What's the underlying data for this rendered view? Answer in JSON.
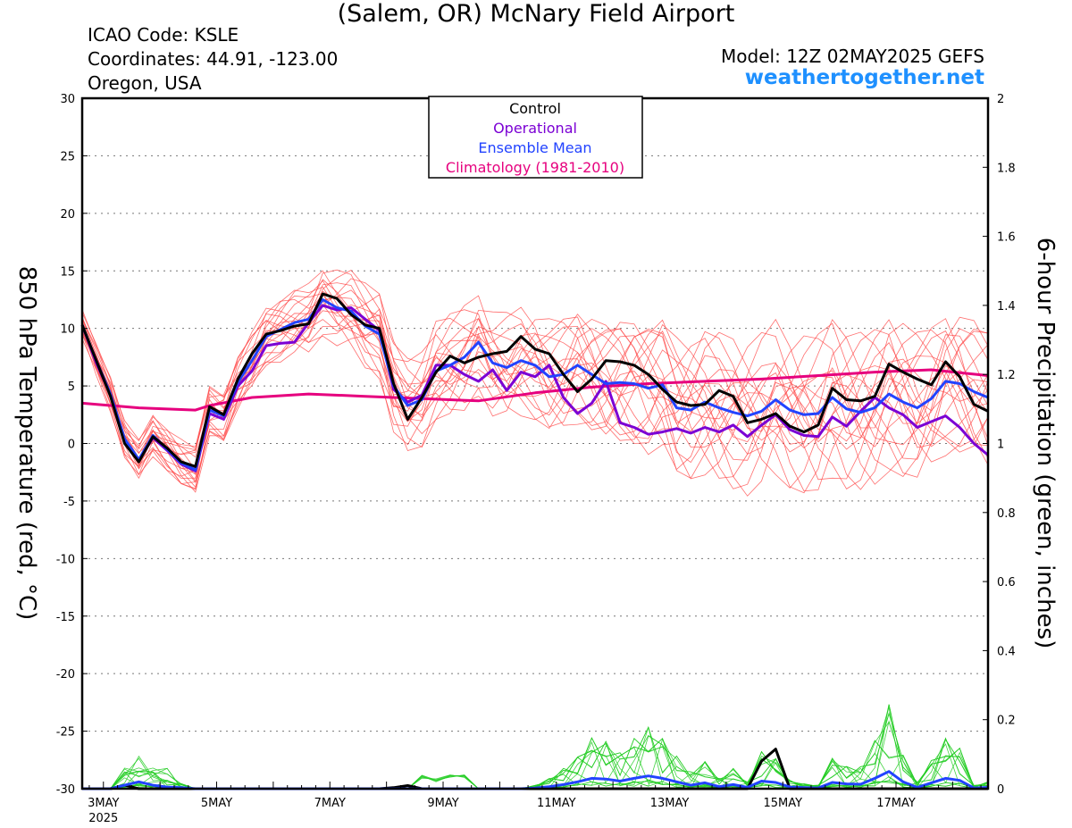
{
  "header": {
    "title": "(Salem, OR) McNary Field Airport",
    "icao": "ICAO Code: KSLE",
    "coords": "Coordinates: 44.91, -123.00",
    "region": "Oregon, USA",
    "model": "Model: 12Z 02MAY2025 GEFS",
    "site": "weathertogether.net"
  },
  "colors": {
    "control": "#000000",
    "operational": "#7b00d4",
    "mean": "#2243ff",
    "climo": "#e6007e",
    "members": "#ff4a4a",
    "precip": "#22cc22"
  },
  "chart_data": {
    "type": "line",
    "ylabel": "850 hPa Temperature (red, °C)",
    "y2label": "6-hour Precipitation (green, inches)",
    "ylim": [
      -30,
      30
    ],
    "y2lim": [
      0,
      2
    ],
    "yticks": [
      -30,
      -25,
      -20,
      -15,
      -10,
      -5,
      0,
      5,
      10,
      15,
      20,
      25,
      30
    ],
    "y2ticks": [
      0,
      0.2,
      0.4,
      0.6,
      0.8,
      1,
      1.2,
      1.4,
      1.6,
      1.8,
      2
    ],
    "x_start_hours": -9,
    "x_end_hours": 375,
    "xticks": [
      {
        "hour": 0,
        "label": "3MAY",
        "sub": "2025"
      },
      {
        "hour": 48,
        "label": "5MAY",
        "sub": ""
      },
      {
        "hour": 96,
        "label": "7MAY",
        "sub": ""
      },
      {
        "hour": 144,
        "label": "9MAY",
        "sub": ""
      },
      {
        "hour": 192,
        "label": "11MAY",
        "sub": ""
      },
      {
        "hour": 240,
        "label": "13MAY",
        "sub": ""
      },
      {
        "hour": 288,
        "label": "15MAY",
        "sub": ""
      },
      {
        "hour": 336,
        "label": "17MAY",
        "sub": ""
      }
    ],
    "legend": [
      "Control",
      "Operational",
      "Ensemble Mean",
      "Climatology (1981-2010)"
    ],
    "grid": "dotted horizontal",
    "series": [
      {
        "name": "Control",
        "color": "#000000",
        "hours": [
          -9,
          -3,
          3,
          9,
          15,
          21,
          27,
          33,
          39,
          45,
          51,
          57,
          63,
          69,
          75,
          81,
          87,
          93,
          99,
          105,
          111,
          117,
          123,
          129,
          135,
          141,
          147,
          153,
          159,
          165,
          171,
          177,
          183,
          189,
          195,
          201,
          207,
          213,
          219,
          225,
          231,
          237,
          243,
          249,
          255,
          261,
          267,
          273,
          279,
          285,
          291,
          297,
          303,
          309,
          315,
          321,
          327,
          333,
          339,
          345,
          351,
          357,
          363,
          369,
          375
        ],
        "values": [
          10.3,
          7.2,
          4.1,
          0.0,
          -1.6,
          0.6,
          -0.4,
          -1.6,
          -2.0,
          3.2,
          2.5,
          5.6,
          7.8,
          9.5,
          9.8,
          10.2,
          10.4,
          13.0,
          12.6,
          11.2,
          10.3,
          10.0,
          5.2,
          2.1,
          4.0,
          6.2,
          7.6,
          7.0,
          7.5,
          7.8,
          8.0,
          9.3,
          8.2,
          7.8,
          6.0,
          4.5,
          5.6,
          7.2,
          7.1,
          6.8,
          6.0,
          4.7,
          3.6,
          3.3,
          3.4,
          4.6,
          4.1,
          1.8,
          2.1,
          2.6,
          1.5,
          1.0,
          1.6,
          4.8,
          3.8,
          3.7,
          4.1,
          6.9,
          6.2,
          5.6,
          5.1,
          7.1,
          5.8,
          3.4,
          2.8
        ]
      },
      {
        "name": "Operational",
        "color": "#7b00d4",
        "hours": [
          -9,
          -3,
          3,
          9,
          15,
          21,
          27,
          33,
          39,
          45,
          51,
          57,
          63,
          69,
          75,
          81,
          87,
          93,
          99,
          105,
          111,
          117,
          123,
          129,
          135,
          141,
          147,
          153,
          159,
          165,
          171,
          177,
          183,
          189,
          195,
          201,
          207,
          213,
          219,
          225,
          231,
          237,
          243,
          249,
          255,
          261,
          267,
          273,
          279,
          285,
          291,
          297,
          303,
          309,
          315,
          321,
          327,
          333,
          339,
          345,
          351,
          357,
          363,
          369,
          375
        ],
        "values": [
          10.3,
          7.0,
          4.2,
          0.2,
          -1.5,
          0.5,
          -0.6,
          -1.8,
          -2.4,
          2.6,
          2.1,
          5.0,
          6.3,
          8.5,
          8.7,
          8.8,
          10.5,
          12.0,
          11.6,
          11.8,
          10.8,
          9.8,
          4.7,
          3.6,
          4.2,
          6.8,
          6.8,
          6.0,
          5.4,
          6.4,
          4.6,
          6.2,
          5.8,
          6.8,
          4.0,
          2.6,
          3.5,
          5.4,
          1.8,
          1.4,
          0.8,
          1.0,
          1.3,
          0.9,
          1.4,
          1.0,
          1.6,
          0.6,
          1.6,
          2.5,
          1.2,
          0.7,
          0.6,
          2.3,
          1.5,
          2.8,
          4.0,
          3.1,
          2.5,
          1.4,
          1.9,
          2.4,
          1.4,
          0.0,
          -1.0
        ]
      },
      {
        "name": "Ensemble Mean",
        "color": "#2243ff",
        "hours": [
          -9,
          -3,
          3,
          9,
          15,
          21,
          27,
          33,
          39,
          45,
          51,
          57,
          63,
          69,
          75,
          81,
          87,
          93,
          99,
          105,
          111,
          117,
          123,
          129,
          135,
          141,
          147,
          153,
          159,
          165,
          171,
          177,
          183,
          189,
          195,
          201,
          207,
          213,
          219,
          225,
          231,
          237,
          243,
          249,
          255,
          261,
          267,
          273,
          279,
          285,
          291,
          297,
          303,
          309,
          315,
          321,
          327,
          333,
          339,
          345,
          351,
          357,
          363,
          369,
          375
        ],
        "values": [
          10.3,
          7.2,
          4.3,
          0.4,
          -1.4,
          0.7,
          -0.5,
          -1.7,
          -2.3,
          2.9,
          2.4,
          5.3,
          7.2,
          9.3,
          9.9,
          10.5,
          10.8,
          12.5,
          11.8,
          11.5,
          10.2,
          9.5,
          5.0,
          3.3,
          3.8,
          6.3,
          6.8,
          7.5,
          8.8,
          7.0,
          6.6,
          7.2,
          6.8,
          5.8,
          6.0,
          6.8,
          6.0,
          5.2,
          5.3,
          5.2,
          4.8,
          5.1,
          3.1,
          2.9,
          3.6,
          3.1,
          2.7,
          2.4,
          2.8,
          3.8,
          2.9,
          2.5,
          2.6,
          4.0,
          3.0,
          2.7,
          3.1,
          4.3,
          3.6,
          3.1,
          3.9,
          5.4,
          5.2,
          4.5,
          4.0
        ]
      },
      {
        "name": "Climatology (1981-2010)",
        "color": "#e6007e",
        "hours": [
          -9,
          15,
          39,
          45,
          63,
          87,
          111,
          135,
          159,
          183,
          207,
          231,
          255,
          279,
          303,
          327,
          351,
          375
        ],
        "values": [
          3.5,
          3.1,
          2.9,
          3.3,
          4.0,
          4.3,
          4.1,
          3.9,
          3.7,
          4.4,
          4.9,
          5.2,
          5.4,
          5.6,
          5.9,
          6.2,
          6.4,
          5.9
        ]
      },
      {
        "name": "Control precip",
        "axis": "y2",
        "color": "#000000",
        "hours": [
          -9,
          3,
          9,
          15,
          21,
          27,
          33,
          39,
          45,
          51,
          57,
          63,
          69,
          75,
          81,
          87,
          93,
          99,
          105,
          111,
          117,
          123,
          129,
          135,
          141,
          147,
          153,
          159,
          165,
          171,
          177,
          183,
          189,
          195,
          201,
          207,
          213,
          219,
          225,
          231,
          237,
          243,
          249,
          255,
          261,
          267,
          273,
          279,
          285,
          291,
          297,
          303,
          309,
          315,
          321,
          327,
          333,
          339,
          345,
          351,
          357,
          363,
          369,
          375
        ],
        "values": [
          0,
          0,
          0.01,
          0,
          0,
          0,
          0,
          0,
          0,
          0,
          0,
          0,
          0,
          0,
          0,
          0,
          0,
          0,
          0,
          0,
          0,
          0.003,
          0.009,
          0,
          0,
          0,
          0,
          0,
          0,
          0,
          0,
          0,
          0,
          0,
          0,
          0,
          0,
          0,
          0,
          0,
          0,
          0,
          0,
          0,
          0,
          0,
          0,
          0.08,
          0.115,
          0,
          0,
          0,
          0,
          0,
          0,
          0,
          0,
          0,
          0,
          0,
          0,
          0,
          0,
          0
        ]
      },
      {
        "name": "Ensemble Mean precip",
        "axis": "y2",
        "color": "#2243ff",
        "hours": [
          -9,
          3,
          9,
          15,
          21,
          27,
          33,
          39,
          45,
          51,
          57,
          63,
          69,
          75,
          81,
          87,
          93,
          99,
          105,
          111,
          117,
          123,
          129,
          135,
          141,
          147,
          153,
          159,
          165,
          171,
          177,
          183,
          189,
          195,
          201,
          207,
          213,
          219,
          225,
          231,
          237,
          243,
          249,
          255,
          261,
          267,
          273,
          279,
          285,
          291,
          297,
          303,
          309,
          315,
          321,
          327,
          333,
          339,
          345,
          351,
          357,
          363,
          369,
          375
        ],
        "values": [
          0,
          0,
          0.01,
          0.02,
          0.01,
          0.005,
          0.003,
          0,
          0,
          0,
          0,
          0,
          0,
          0,
          0,
          0,
          0,
          0,
          0,
          0,
          0,
          0,
          0,
          0,
          0,
          0,
          0,
          0,
          0,
          0,
          0,
          0.002,
          0.006,
          0.012,
          0.02,
          0.03,
          0.028,
          0.022,
          0.03,
          0.037,
          0.03,
          0.02,
          0.01,
          0.017,
          0.006,
          0.012,
          0.004,
          0.022,
          0.018,
          0.005,
          0.003,
          0.002,
          0.018,
          0.014,
          0.013,
          0.03,
          0.05,
          0.02,
          0.004,
          0.017,
          0.03,
          0.024,
          0.002,
          0.004
        ]
      }
    ]
  }
}
